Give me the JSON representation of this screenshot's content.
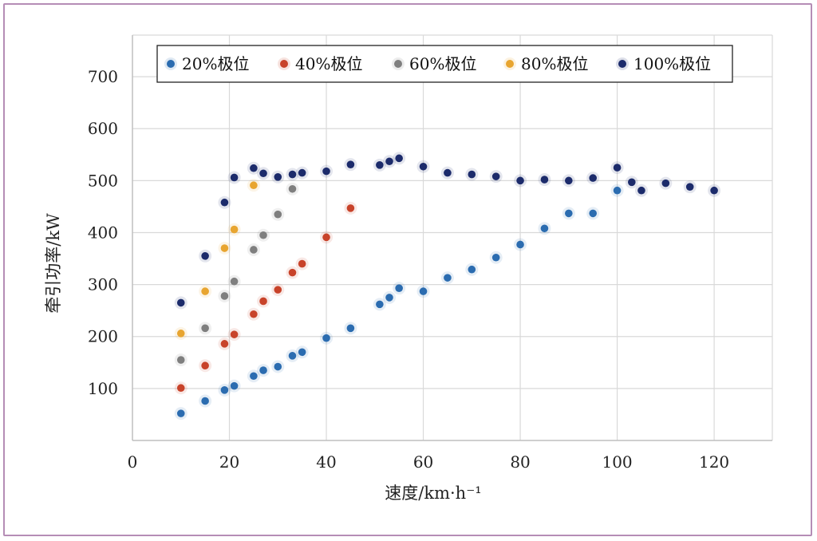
{
  "chart_data": {
    "type": "scatter",
    "xlabel": "速度/km·h⁻¹",
    "ylabel": "牵引功率/kW",
    "xlim": [
      0,
      132
    ],
    "ylim": [
      0,
      780
    ],
    "x_ticks": [
      0,
      20,
      40,
      60,
      80,
      100,
      120
    ],
    "y_ticks": [
      100,
      200,
      300,
      400,
      500,
      600,
      700
    ],
    "grid": true,
    "legend_position": "top",
    "series": [
      {
        "name": "20%极位",
        "color": "#2b6cb0",
        "points": [
          [
            10,
            52
          ],
          [
            15,
            76
          ],
          [
            19,
            97
          ],
          [
            21,
            105
          ],
          [
            25,
            124
          ],
          [
            27,
            135
          ],
          [
            30,
            142
          ],
          [
            33,
            163
          ],
          [
            35,
            170
          ],
          [
            40,
            197
          ],
          [
            45,
            216
          ],
          [
            51,
            262
          ],
          [
            53,
            275
          ],
          [
            55,
            293
          ],
          [
            60,
            287
          ],
          [
            65,
            313
          ],
          [
            70,
            329
          ],
          [
            75,
            352
          ],
          [
            80,
            377
          ],
          [
            85,
            408
          ],
          [
            90,
            437
          ],
          [
            95,
            437
          ],
          [
            100,
            481
          ]
        ]
      },
      {
        "name": "40%极位",
        "color": "#c8432a",
        "points": [
          [
            10,
            101
          ],
          [
            15,
            144
          ],
          [
            19,
            186
          ],
          [
            21,
            204
          ],
          [
            25,
            243
          ],
          [
            27,
            268
          ],
          [
            30,
            290
          ],
          [
            33,
            323
          ],
          [
            35,
            340
          ],
          [
            40,
            391
          ],
          [
            45,
            447
          ]
        ]
      },
      {
        "name": "60%极位",
        "color": "#7f7f7f",
        "points": [
          [
            10,
            155
          ],
          [
            15,
            216
          ],
          [
            19,
            278
          ],
          [
            21,
            306
          ],
          [
            25,
            367
          ],
          [
            27,
            395
          ],
          [
            30,
            435
          ],
          [
            33,
            484
          ]
        ]
      },
      {
        "name": "80%极位",
        "color": "#e8a530",
        "points": [
          [
            10,
            206
          ],
          [
            15,
            287
          ],
          [
            19,
            370
          ],
          [
            21,
            406
          ],
          [
            25,
            491
          ]
        ]
      },
      {
        "name": "100%极位",
        "color": "#1c2b6b",
        "points": [
          [
            10,
            265
          ],
          [
            15,
            355
          ],
          [
            19,
            458
          ],
          [
            21,
            506
          ],
          [
            25,
            524
          ],
          [
            27,
            514
          ],
          [
            30,
            507
          ],
          [
            33,
            512
          ],
          [
            35,
            515
          ],
          [
            40,
            518
          ],
          [
            45,
            531
          ],
          [
            51,
            530
          ],
          [
            53,
            537
          ],
          [
            55,
            543
          ],
          [
            60,
            527
          ],
          [
            65,
            515
          ],
          [
            70,
            512
          ],
          [
            75,
            508
          ],
          [
            80,
            500
          ],
          [
            85,
            502
          ],
          [
            90,
            500
          ],
          [
            95,
            505
          ],
          [
            100,
            525
          ],
          [
            103,
            497
          ],
          [
            105,
            481
          ],
          [
            110,
            495
          ],
          [
            115,
            488
          ],
          [
            120,
            481
          ]
        ]
      }
    ]
  }
}
